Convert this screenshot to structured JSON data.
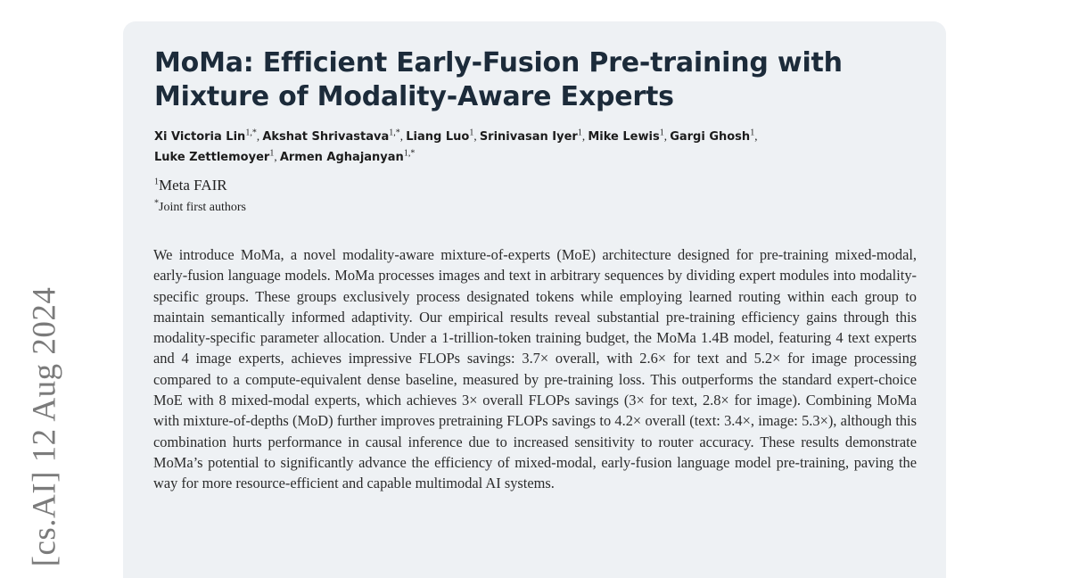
{
  "side_stamp": "[cs.AI]  12 Aug 2024",
  "paper": {
    "title": "MoMa: Efficient Early-Fusion Pre-training with Mixture of Modality-Aware Experts",
    "authors": [
      {
        "name": "Xi Victoria Lin",
        "sup": "1,*"
      },
      {
        "name": "Akshat Shrivastava",
        "sup": "1,*"
      },
      {
        "name": "Liang Luo",
        "sup": "1"
      },
      {
        "name": "Srinivasan Iyer",
        "sup": "1"
      },
      {
        "name": "Mike Lewis",
        "sup": "1"
      },
      {
        "name": "Gargi Ghosh",
        "sup": "1"
      },
      {
        "name": "Luke Zettlemoyer",
        "sup": "1"
      },
      {
        "name": "Armen Aghajanyan",
        "sup": "1,*"
      }
    ],
    "affiliation": {
      "sup": "1",
      "name": "Meta FAIR"
    },
    "note": {
      "sup": "*",
      "text": "Joint first authors"
    },
    "abstract": "We introduce MoMa, a novel modality-aware mixture-of-experts (MoE) architecture designed for pre-training mixed-modal, early-fusion language models. MoMa processes images and text in arbitrary sequences by dividing expert modules into modality-specific groups. These groups exclusively process designated tokens while employing learned routing within each group to maintain semantically informed adaptivity. Our empirical results reveal substantial pre-training efficiency gains through this modality-specific parameter allocation. Under a 1-trillion-token training budget, the MoMa 1.4B model, featuring 4 text experts and 4 image experts, achieves impressive FLOPs savings: 3.7× overall, with 2.6× for text and 5.2× for image processing compared to a compute-equivalent dense baseline, measured by pre-training loss. This outperforms the standard expert-choice MoE with 8 mixed-modal experts, which achieves 3× overall FLOPs savings (3× for text, 2.8× for image). Combining MoMa with mixture-of-depths (MoD) further improves pretraining FLOPs savings to 4.2× overall (text: 3.4×, image: 5.3×), although this combination hurts performance in causal inference due to increased sensitivity to router accuracy. These results demonstrate MoMa’s potential to significantly advance the efficiency of mixed-modal, early-fusion language model pre-training, paving the way for more resource-efficient and capable multimodal AI systems."
  }
}
